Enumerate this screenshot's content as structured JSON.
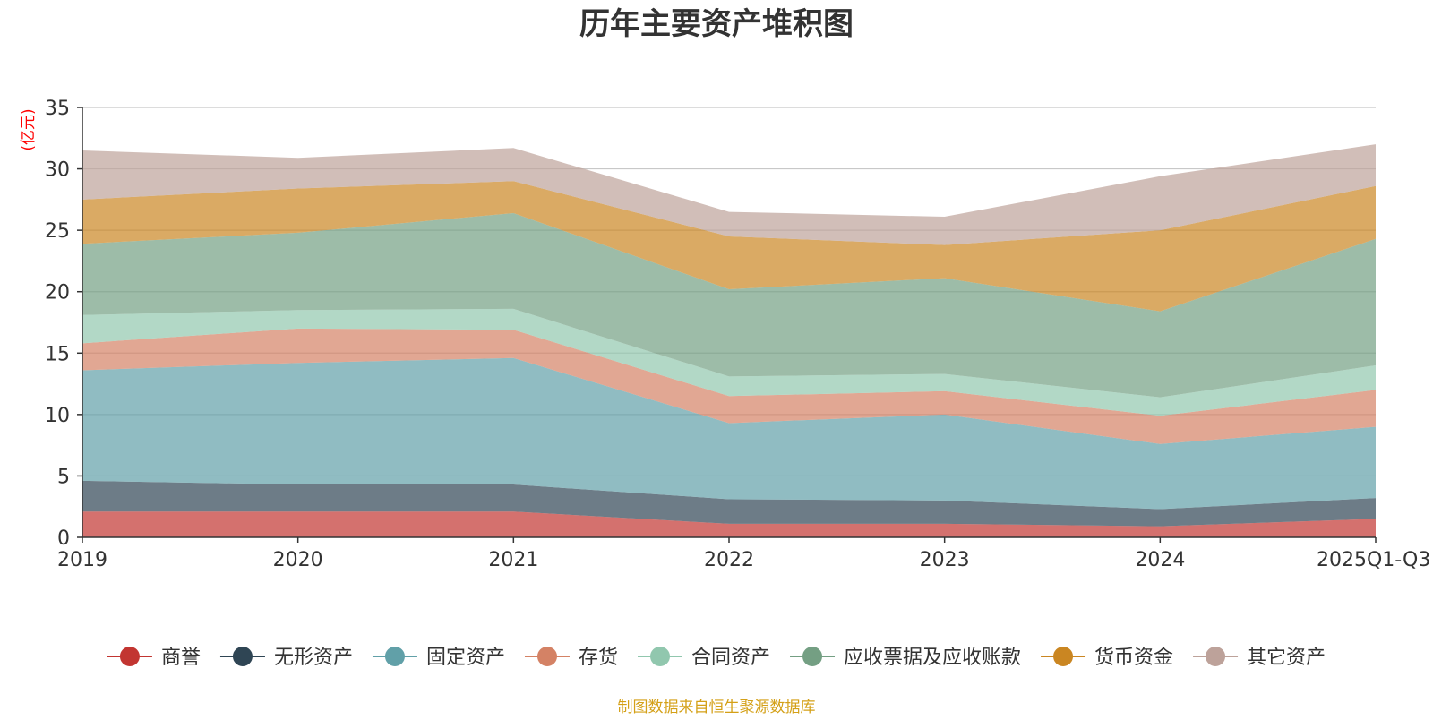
{
  "chart_data": {
    "type": "area",
    "stacked": true,
    "title": "历年主要资产堆积图",
    "ylabel": "(亿元)",
    "xlabel": "",
    "ylim": [
      0,
      35
    ],
    "yticks": [
      0,
      5,
      10,
      15,
      20,
      25,
      30,
      35
    ],
    "grid": true,
    "legend_position": "bottom",
    "categories": [
      "2019",
      "2020",
      "2021",
      "2022",
      "2023",
      "2024",
      "2025Q1-Q3"
    ],
    "series": [
      {
        "name": "商誉",
        "values": [
          2.1,
          2.1,
          2.1,
          1.1,
          1.1,
          0.9,
          1.5
        ]
      },
      {
        "name": "无形资产",
        "values": [
          2.5,
          2.2,
          2.2,
          2.0,
          1.9,
          1.4,
          1.7
        ]
      },
      {
        "name": "固定资产",
        "values": [
          9.0,
          9.9,
          10.3,
          6.2,
          7.0,
          5.3,
          5.8
        ]
      },
      {
        "name": "存货",
        "values": [
          2.2,
          2.8,
          2.3,
          2.2,
          1.9,
          2.3,
          3.0
        ]
      },
      {
        "name": "合同资产",
        "values": [
          2.3,
          1.5,
          1.7,
          1.6,
          1.4,
          1.5,
          2.0
        ]
      },
      {
        "name": "应收票据及应收账款",
        "values": [
          5.8,
          6.3,
          7.8,
          7.1,
          7.8,
          7.0,
          10.3
        ]
      },
      {
        "name": "货币资金",
        "values": [
          3.6,
          3.6,
          2.6,
          4.3,
          2.7,
          6.6,
          4.3
        ]
      },
      {
        "name": "其它资产",
        "values": [
          4.0,
          2.5,
          2.7,
          2.0,
          2.3,
          4.4,
          3.4
        ]
      }
    ]
  },
  "colors": {
    "series": [
      "#c23531",
      "#2f4554",
      "#61a0a8",
      "#d48265",
      "#91c7ae",
      "#749f83",
      "#ca8622",
      "#bda29a"
    ],
    "title": "#333333",
    "axis": "#333333",
    "ylabel": "#ff0000",
    "footer": "#d4a017",
    "grid": "#c8c8c8"
  },
  "footer": {
    "source_text": "制图数据来自恒生聚源数据库"
  }
}
